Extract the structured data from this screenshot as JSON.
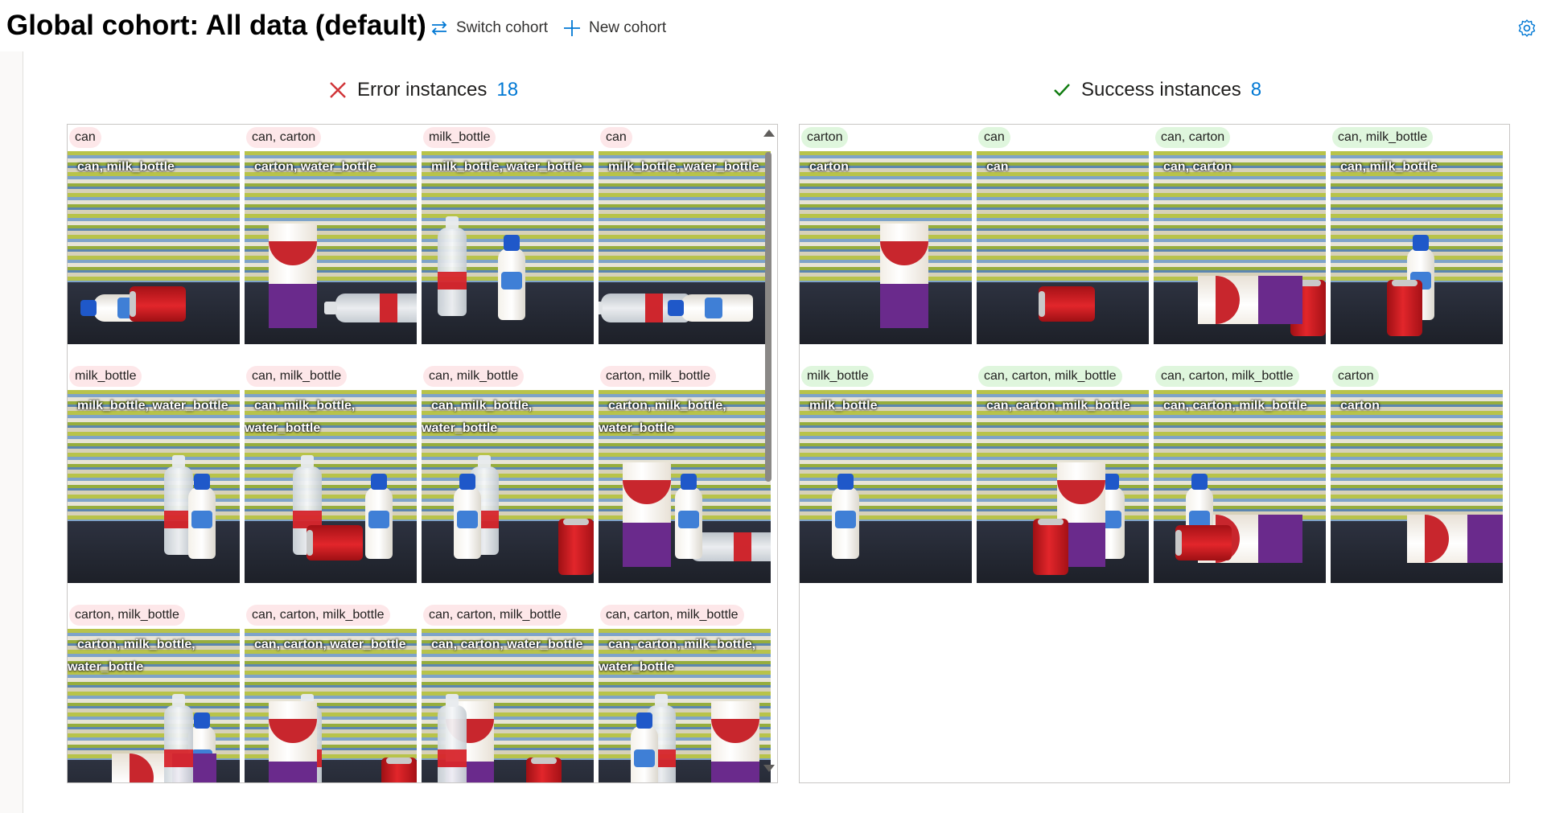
{
  "header": {
    "title": "Global cohort: All data (default)",
    "switch_label": "Switch cohort",
    "new_label": "New cohort",
    "switch_icon": "switch-arrows-icon",
    "new_icon": "plus-icon",
    "settings_icon": "gear-icon",
    "accent": "#0078d4"
  },
  "error_section": {
    "title": "Error instances",
    "count": "18",
    "icon": "x-icon",
    "icon_color": "#d13438",
    "pill_color": "#fde7e9",
    "rows": [
      [
        {
          "pill": "can",
          "label": "can, milk_bottle",
          "objects": [
            "milk-lay",
            "can-lay"
          ]
        },
        {
          "pill": "can, carton",
          "label": "carton, water_bottle",
          "objects": [
            "carton",
            "water-lay"
          ]
        },
        {
          "pill": "milk_bottle",
          "label": "milk_bottle, water_bottle",
          "objects": [
            "water",
            "milk"
          ]
        },
        {
          "pill": "can",
          "label": "milk_bottle, water_bottle",
          "objects": [
            "water-lay",
            "milk-lay"
          ]
        }
      ],
      [
        {
          "pill": "milk_bottle",
          "label": "milk_bottle, water_bottle",
          "objects": [
            "water",
            "milk"
          ]
        },
        {
          "pill": "can, milk_bottle",
          "label": "can, milk_bottle, water_bottle",
          "objects": [
            "milk",
            "water",
            "can-lay"
          ]
        },
        {
          "pill": "can, milk_bottle",
          "label": "can, milk_bottle, water_bottle",
          "objects": [
            "water",
            "milk",
            "can"
          ]
        },
        {
          "pill": "carton, milk_bottle",
          "label": "carton, milk_bottle, water_bottle",
          "objects": [
            "carton",
            "water-lay",
            "milk"
          ]
        }
      ],
      [
        {
          "pill": "carton, milk_bottle",
          "label": "carton, milk_bottle, water_bottle",
          "objects": [
            "milk",
            "carton-lay",
            "water"
          ]
        },
        {
          "pill": "can, carton, milk_bottle",
          "label": "can, carton, water_bottle",
          "objects": [
            "water",
            "carton",
            "can"
          ]
        },
        {
          "pill": "can, carton, milk_bottle",
          "label": "can, carton, water_bottle",
          "objects": [
            "carton",
            "water",
            "can"
          ]
        },
        {
          "pill": "can, carton, milk_bottle",
          "label": "can, carton, milk_bottle, water_bottle",
          "objects": [
            "carton",
            "water",
            "milk"
          ]
        }
      ]
    ]
  },
  "success_section": {
    "title": "Success instances",
    "count": "8",
    "icon": "check-icon",
    "icon_color": "#107c10",
    "pill_color": "#dff6dd",
    "rows": [
      [
        {
          "pill": "carton",
          "label": "carton",
          "objects": [
            "carton"
          ]
        },
        {
          "pill": "can",
          "label": "can",
          "objects": [
            "can-lay"
          ]
        },
        {
          "pill": "can, carton",
          "label": "can, carton",
          "objects": [
            "can",
            "carton-lay"
          ]
        },
        {
          "pill": "can, milk_bottle",
          "label": "can, milk_bottle",
          "objects": [
            "milk",
            "can"
          ]
        }
      ],
      [
        {
          "pill": "milk_bottle",
          "label": "milk_bottle",
          "objects": [
            "milk"
          ]
        },
        {
          "pill": "can, carton, milk_bottle",
          "label": "can, carton, milk_bottle",
          "objects": [
            "milk",
            "carton",
            "can"
          ]
        },
        {
          "pill": "can, carton, milk_bottle",
          "label": "can, carton, milk_bottle",
          "objects": [
            "carton-lay",
            "milk",
            "can-lay"
          ]
        },
        {
          "pill": "carton",
          "label": "carton",
          "objects": [
            "carton-lay"
          ]
        }
      ]
    ]
  }
}
